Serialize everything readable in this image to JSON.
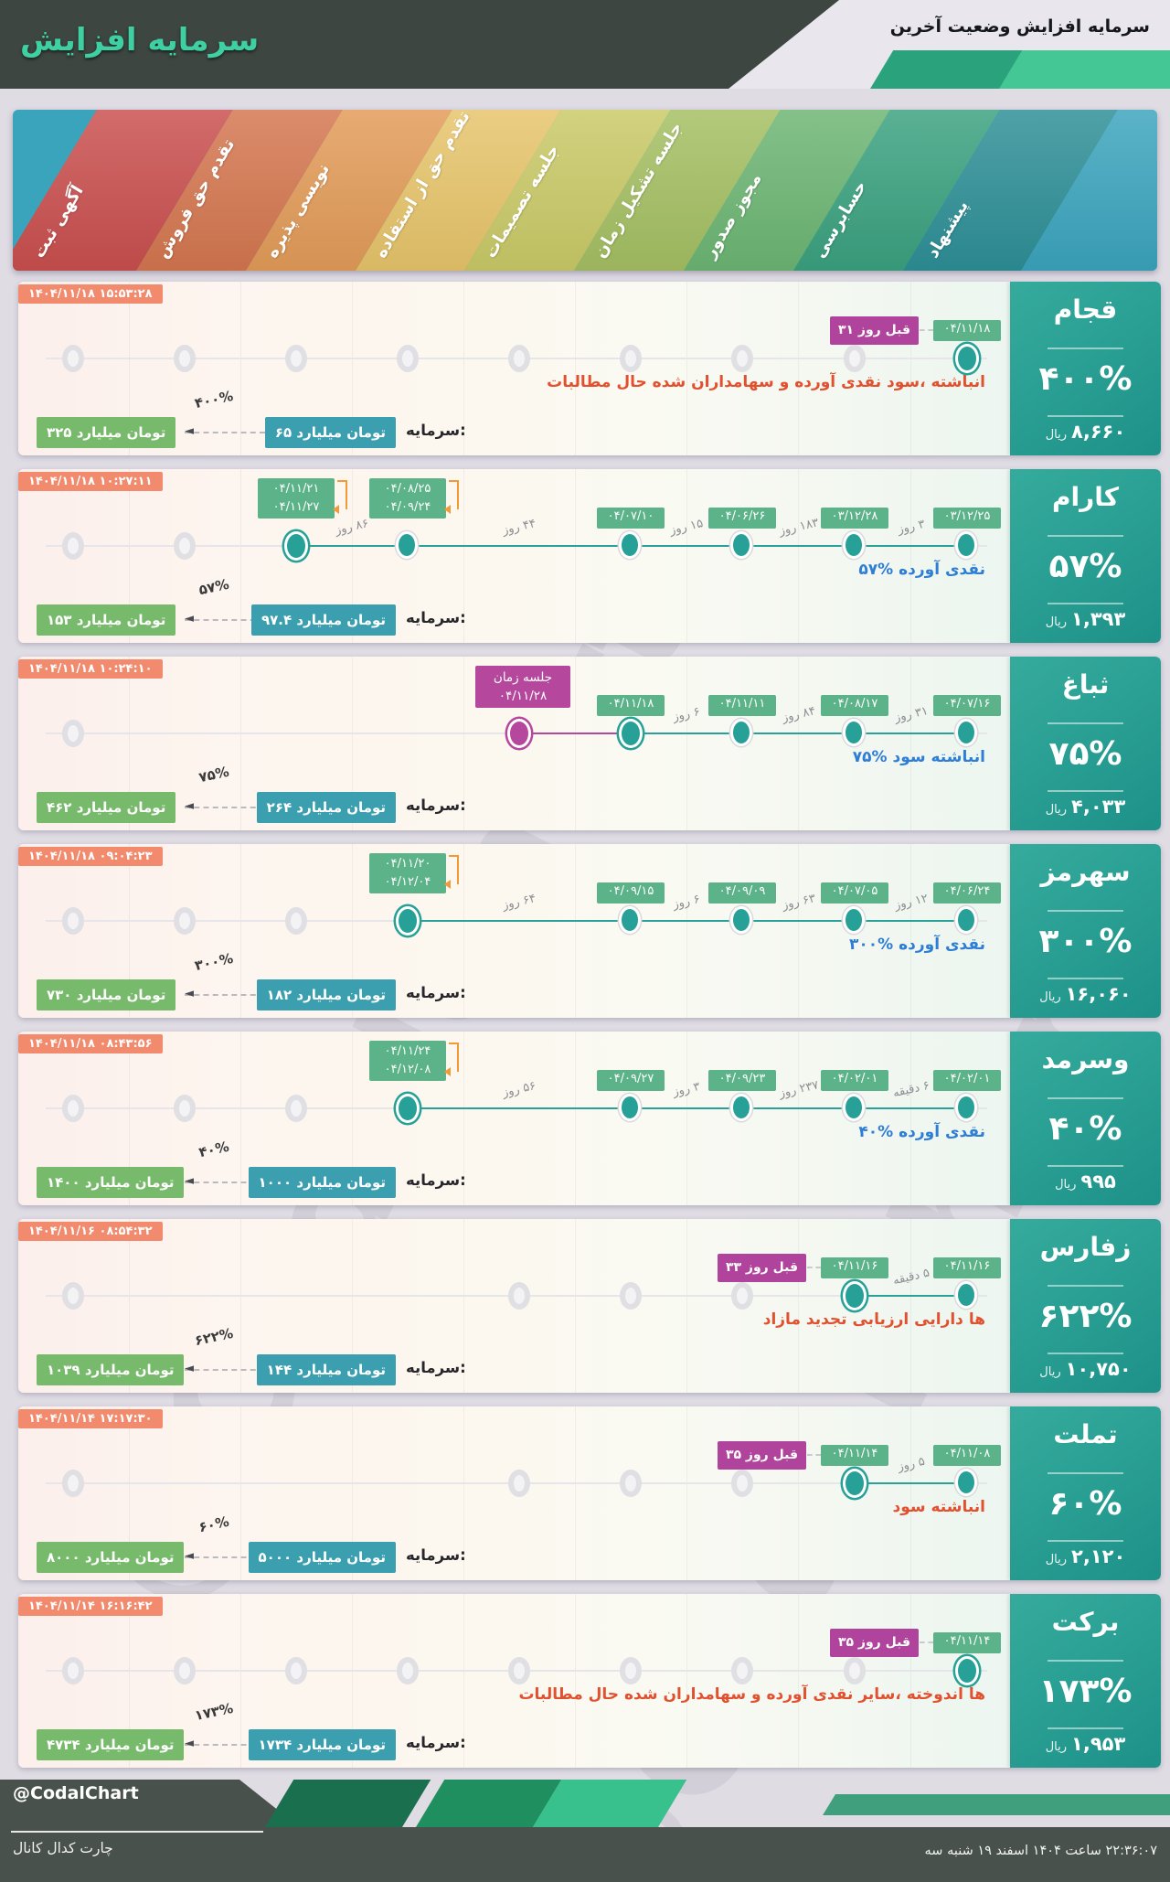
{
  "header": {
    "title": "افزایش سرمایه",
    "subtitle": "آخرین وضعیت افزایش سرمایه"
  },
  "stages": [
    {
      "label": "ثبت آگهی",
      "color": "#c94f4e"
    },
    {
      "label": "فروش حق تقدم",
      "color": "#d4764f"
    },
    {
      "label": "پذیره نویسی",
      "color": "#e29b58"
    },
    {
      "label": "استفاده از حق تقدم",
      "color": "#e6c46a"
    },
    {
      "label": "تصمیمات جلسه",
      "color": "#c9c967"
    },
    {
      "label": "زمان تشکیل جلسه",
      "color": "#a4bf62"
    },
    {
      "label": "صدور مجوز",
      "color": "#6cb573"
    },
    {
      "label": "حسابرسی",
      "color": "#3aa17f"
    },
    {
      "label": "پیشنهاد",
      "color": "#2d8f96"
    },
    {
      "label": "",
      "color": "#3ba4bd"
    }
  ],
  "price_unit": "ریال",
  "capital_label": "سرمایه:",
  "rows": [
    {
      "timestamp": "۱۴۰۴/۱۱/۱۸ ۱۵:۵۳:۲۸",
      "company": "قجام",
      "percent": "۴۰۰%",
      "price": "۸,۶۶۰",
      "description": {
        "text": "مطالبات حال شده سهامداران و آورده نقدی ،سود انباشته",
        "color": "red"
      },
      "capital": {
        "from": "۶۵ میلیارد تومان",
        "percent": "۴۰۰%",
        "to": "۳۲۵ میلیارد تومان"
      },
      "gray_dots": [
        1,
        2,
        3,
        4,
        5,
        6,
        7,
        8
      ],
      "events": [
        {
          "col": 9,
          "type": "ring",
          "dates": [
            "۰۴/۱۱/۱۸"
          ],
          "ago": "۳۱ روز قبل"
        }
      ],
      "gaps": [],
      "lines": []
    },
    {
      "timestamp": "۱۴۰۴/۱۱/۱۸ ۱۰:۲۷:۱۱",
      "company": "کارام",
      "percent": "۵۷%",
      "price": "۱,۳۹۳",
      "description": {
        "text": "۵۷% آورده نقدی",
        "color": "blue"
      },
      "capital": {
        "from": "۹۷.۴ میلیارد تومان",
        "percent": "۵۷%",
        "to": "۱۵۳ میلیارد تومان"
      },
      "gray_dots": [
        1,
        2
      ],
      "events": [
        {
          "col": 3,
          "type": "ring",
          "dates": [
            "۰۴/۱۱/۲۱",
            "۰۴/۱۱/۲۷"
          ],
          "bracket": true
        },
        {
          "col": 4,
          "type": "active",
          "dates": [
            "۰۴/۰۸/۲۵",
            "۰۴/۰۹/۲۴"
          ],
          "bracket": true
        },
        {
          "col": 6,
          "type": "active",
          "dates": [
            "۰۴/۰۷/۱۰"
          ]
        },
        {
          "col": 7,
          "type": "active",
          "dates": [
            "۰۴/۰۶/۲۶"
          ]
        },
        {
          "col": 8,
          "type": "active",
          "dates": [
            "۰۳/۱۲/۲۸"
          ]
        },
        {
          "col": 9,
          "type": "active",
          "dates": [
            "۰۳/۱۲/۲۵"
          ]
        }
      ],
      "gaps": [
        {
          "a": 3,
          "b": 4,
          "label": "۸۶ روز"
        },
        {
          "a": 4,
          "b": 6,
          "label": "۴۴ روز"
        },
        {
          "a": 6,
          "b": 7,
          "label": "۱۵ روز"
        },
        {
          "a": 7,
          "b": 8,
          "label": "۱۸۳ روز"
        },
        {
          "a": 8,
          "b": 9,
          "label": "۳ روز"
        }
      ],
      "lines": [
        {
          "from": 3,
          "to": 9,
          "color": "teal"
        }
      ]
    },
    {
      "timestamp": "۱۴۰۴/۱۱/۱۸ ۱۰:۲۴:۱۰",
      "company": "ثباغ",
      "percent": "۷۵%",
      "price": "۴,۰۳۳",
      "description": {
        "text": "۷۵% سود انباشته",
        "color": "blue"
      },
      "capital": {
        "from": "۲۶۴ میلیارد تومان",
        "percent": "۷۵%",
        "to": "۴۶۲ میلیارد تومان"
      },
      "gray_dots": [
        1
      ],
      "events": [
        {
          "col": 5,
          "type": "meeting",
          "badge": [
            "زمان جلسه",
            "۰۴/۱۱/۲۸"
          ]
        },
        {
          "col": 6,
          "type": "ring",
          "dates": [
            "۰۴/۱۱/۱۸"
          ]
        },
        {
          "col": 7,
          "type": "active",
          "dates": [
            "۰۴/۱۱/۱۱"
          ]
        },
        {
          "col": 8,
          "type": "active",
          "dates": [
            "۰۴/۰۸/۱۷"
          ]
        },
        {
          "col": 9,
          "type": "active",
          "dates": [
            "۰۴/۰۷/۱۶"
          ]
        }
      ],
      "gaps": [
        {
          "a": 6,
          "b": 7,
          "label": "۶ روز"
        },
        {
          "a": 7,
          "b": 8,
          "label": "۸۴ روز"
        },
        {
          "a": 8,
          "b": 9,
          "label": "۳۱ روز"
        }
      ],
      "lines": [
        {
          "from": 5,
          "to": 6,
          "color": "magenta"
        },
        {
          "from": 6,
          "to": 9,
          "color": "teal"
        }
      ]
    },
    {
      "timestamp": "۱۴۰۴/۱۱/۱۸ ۰۹:۰۴:۲۳",
      "company": "سهرمز",
      "percent": "۳۰۰%",
      "price": "۱۶,۰۶۰",
      "description": {
        "text": "۳۰۰% آورده نقدی",
        "color": "blue"
      },
      "capital": {
        "from": "۱۸۲ میلیارد تومان",
        "percent": "۳۰۰%",
        "to": "۷۳۰ میلیارد تومان"
      },
      "gray_dots": [
        1,
        2,
        3
      ],
      "events": [
        {
          "col": 4,
          "type": "ring",
          "dates": [
            "۰۴/۱۱/۲۰",
            "۰۴/۱۲/۰۴"
          ],
          "bracket": true
        },
        {
          "col": 6,
          "type": "active",
          "dates": [
            "۰۴/۰۹/۱۵"
          ]
        },
        {
          "col": 7,
          "type": "active",
          "dates": [
            "۰۴/۰۹/۰۹"
          ]
        },
        {
          "col": 8,
          "type": "active",
          "dates": [
            "۰۴/۰۷/۰۵"
          ]
        },
        {
          "col": 9,
          "type": "active",
          "dates": [
            "۰۴/۰۶/۲۴"
          ]
        }
      ],
      "gaps": [
        {
          "a": 4,
          "b": 6,
          "label": "۶۴ روز"
        },
        {
          "a": 6,
          "b": 7,
          "label": "۶ روز"
        },
        {
          "a": 7,
          "b": 8,
          "label": "۶۳ روز"
        },
        {
          "a": 8,
          "b": 9,
          "label": "۱۲ روز"
        }
      ],
      "lines": [
        {
          "from": 4,
          "to": 9,
          "color": "teal"
        }
      ]
    },
    {
      "timestamp": "۱۴۰۴/۱۱/۱۸ ۰۸:۴۳:۵۶",
      "company": "وسرمد",
      "percent": "۴۰%",
      "price": "۹۹۵",
      "description": {
        "text": "۴۰% آورده نقدی",
        "color": "blue"
      },
      "capital": {
        "from": "۱۰۰۰ میلیارد تومان",
        "percent": "۴۰%",
        "to": "۱۴۰۰ میلیارد تومان"
      },
      "gray_dots": [
        1,
        2,
        3
      ],
      "events": [
        {
          "col": 4,
          "type": "ring",
          "dates": [
            "۰۴/۱۱/۲۴",
            "۰۴/۱۲/۰۸"
          ],
          "bracket": true
        },
        {
          "col": 6,
          "type": "active",
          "dates": [
            "۰۴/۰۹/۲۷"
          ]
        },
        {
          "col": 7,
          "type": "active",
          "dates": [
            "۰۴/۰۹/۲۳"
          ]
        },
        {
          "col": 8,
          "type": "active",
          "dates": [
            "۰۴/۰۲/۰۱"
          ]
        },
        {
          "col": 9,
          "type": "active",
          "dates": [
            "۰۴/۰۲/۰۱"
          ]
        }
      ],
      "gaps": [
        {
          "a": 4,
          "b": 6,
          "label": "۵۶ روز"
        },
        {
          "a": 6,
          "b": 7,
          "label": "۳ روز"
        },
        {
          "a": 7,
          "b": 8,
          "label": "۲۳۷ روز"
        },
        {
          "a": 8,
          "b": 9,
          "label": "۶ دقیقه"
        }
      ],
      "lines": [
        {
          "from": 4,
          "to": 9,
          "color": "teal"
        }
      ]
    },
    {
      "timestamp": "۱۴۰۴/۱۱/۱۶ ۰۸:۵۴:۳۲",
      "company": "زفارس",
      "percent": "۶۲۲%",
      "price": "۱۰,۷۵۰",
      "description": {
        "text": "مازاد تجدید ارزیابی دارایی ها",
        "color": "red"
      },
      "capital": {
        "from": "۱۴۴ میلیارد تومان",
        "percent": "۶۲۲%",
        "to": "۱۰۳۹ میلیارد تومان"
      },
      "gray_dots": [
        1,
        5,
        6,
        7
      ],
      "events": [
        {
          "col": 8,
          "type": "ring",
          "dates": [
            "۰۴/۱۱/۱۶"
          ],
          "ago": "۳۳ روز قبل"
        },
        {
          "col": 9,
          "type": "active",
          "dates": [
            "۰۴/۱۱/۱۶"
          ]
        }
      ],
      "gaps": [
        {
          "a": 8,
          "b": 9,
          "label": "۵ دقیقه"
        }
      ],
      "lines": [
        {
          "from": 8,
          "to": 9,
          "color": "teal"
        }
      ]
    },
    {
      "timestamp": "۱۴۰۴/۱۱/۱۴ ۱۷:۱۷:۳۰",
      "company": "تملت",
      "percent": "۶۰%",
      "price": "۲,۱۲۰",
      "description": {
        "text": "سود انباشته",
        "color": "red"
      },
      "capital": {
        "from": "۵۰۰۰ میلیارد تومان",
        "percent": "۶۰%",
        "to": "۸۰۰۰ میلیارد تومان"
      },
      "gray_dots": [
        1,
        5,
        6,
        7
      ],
      "events": [
        {
          "col": 8,
          "type": "ring",
          "dates": [
            "۰۴/۱۱/۱۴"
          ],
          "ago": "۳۵ روز قبل"
        },
        {
          "col": 9,
          "type": "active",
          "dates": [
            "۰۴/۱۱/۰۸"
          ]
        }
      ],
      "gaps": [
        {
          "a": 8,
          "b": 9,
          "label": "۵ روز"
        }
      ],
      "lines": [
        {
          "from": 8,
          "to": 9,
          "color": "teal"
        }
      ]
    },
    {
      "timestamp": "۱۴۰۴/۱۱/۱۴ ۱۶:۱۶:۴۲",
      "company": "برکت",
      "percent": "۱۷۳%",
      "price": "۱,۹۵۳",
      "description": {
        "text": "مطالبات حال شده سهامداران و آورده نقدی ،سایر اندوخته ها",
        "color": "red"
      },
      "capital": {
        "from": "۱۷۳۴ میلیارد تومان",
        "percent": "۱۷۳%",
        "to": "۴۷۳۴ میلیارد تومان"
      },
      "gray_dots": [
        1,
        2,
        3,
        4,
        5,
        6,
        7,
        8
      ],
      "events": [
        {
          "col": 9,
          "type": "ring",
          "dates": [
            "۰۴/۱۱/۱۴"
          ],
          "ago": "۳۵ روز قبل"
        }
      ],
      "gaps": [],
      "lines": []
    }
  ],
  "watermark": "@CodalChart",
  "footer": {
    "handle": "@CodalChart",
    "channel": "کانال کدال چارت",
    "datetime": "سه شنبه ۱۹ اسفند ۱۴۰۴ ساعت ۲۲:۳۶:۰۷"
  }
}
